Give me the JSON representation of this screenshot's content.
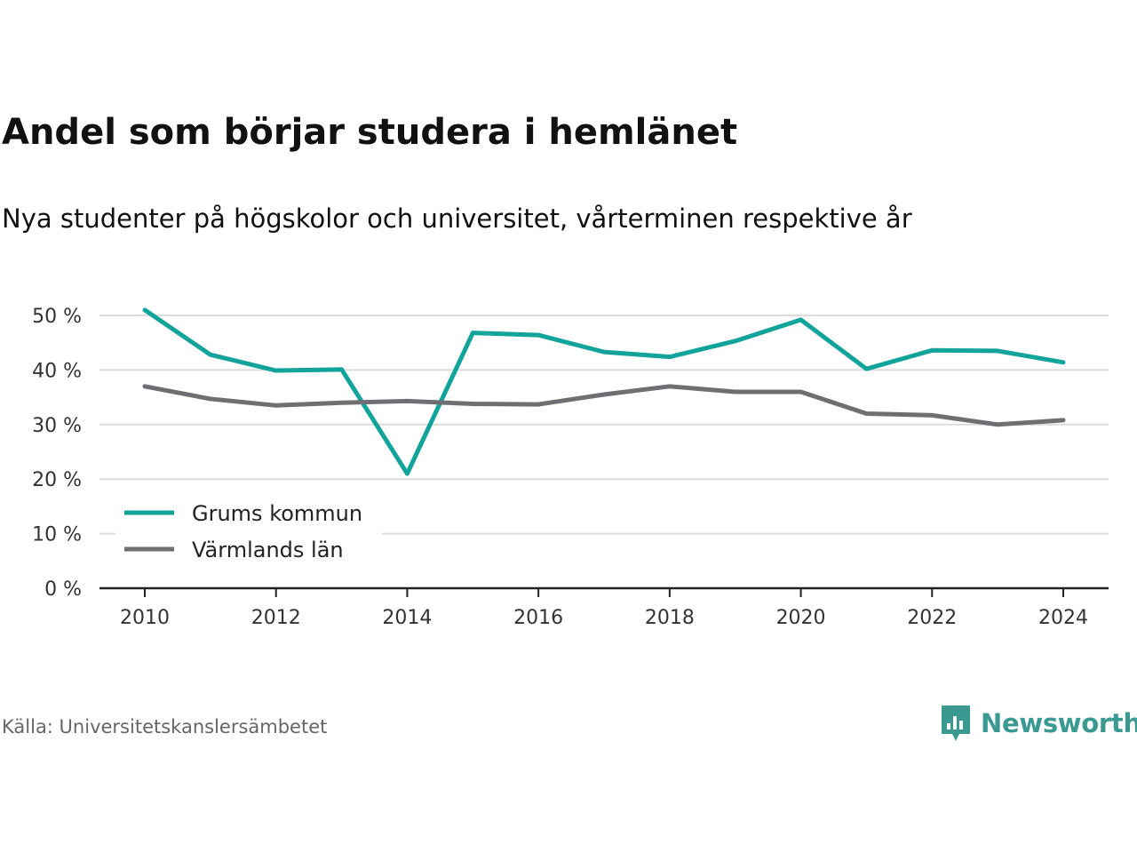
{
  "title": "Andel som börjar studera i hemlänet",
  "subtitle": "Nya studenter på högskolor och universitet, vårterminen respektive år",
  "source": "Källa: Universitetskanslersämbetet",
  "brand": {
    "name": "Newsworthy",
    "icon": "newsworthy-logo-icon",
    "color": "#3a9a92"
  },
  "chart_data": {
    "type": "line",
    "x": [
      2010,
      2011,
      2012,
      2013,
      2014,
      2015,
      2016,
      2017,
      2018,
      2019,
      2020,
      2021,
      2022,
      2023,
      2024
    ],
    "x_ticks": [
      2010,
      2012,
      2014,
      2016,
      2018,
      2020,
      2022,
      2024
    ],
    "x_tick_labels": [
      "2010",
      "2012",
      "2014",
      "2016",
      "2018",
      "2020",
      "2022",
      "2024"
    ],
    "xlim": [
      2010,
      2024
    ],
    "ylim": [
      0,
      50
    ],
    "y_ticks": [
      0,
      10,
      20,
      30,
      40,
      50
    ],
    "y_tick_labels": [
      "0 %",
      "10 %",
      "20 %",
      "30 %",
      "40 %",
      "50 %"
    ],
    "grid": true,
    "legend_position": "bottom-left",
    "series": [
      {
        "name": "Grums kommun",
        "color": "#12a39a",
        "values": [
          51.0,
          42.8,
          39.9,
          40.1,
          21.0,
          46.8,
          46.4,
          43.3,
          42.4,
          45.3,
          49.2,
          40.2,
          43.6,
          43.5,
          41.4
        ]
      },
      {
        "name": "Värmlands län",
        "color": "#6f6e73",
        "values": [
          37.0,
          34.7,
          33.5,
          34.0,
          34.3,
          33.8,
          33.7,
          35.5,
          37.0,
          36.0,
          36.0,
          32.0,
          31.7,
          30.0,
          30.8
        ]
      }
    ]
  }
}
